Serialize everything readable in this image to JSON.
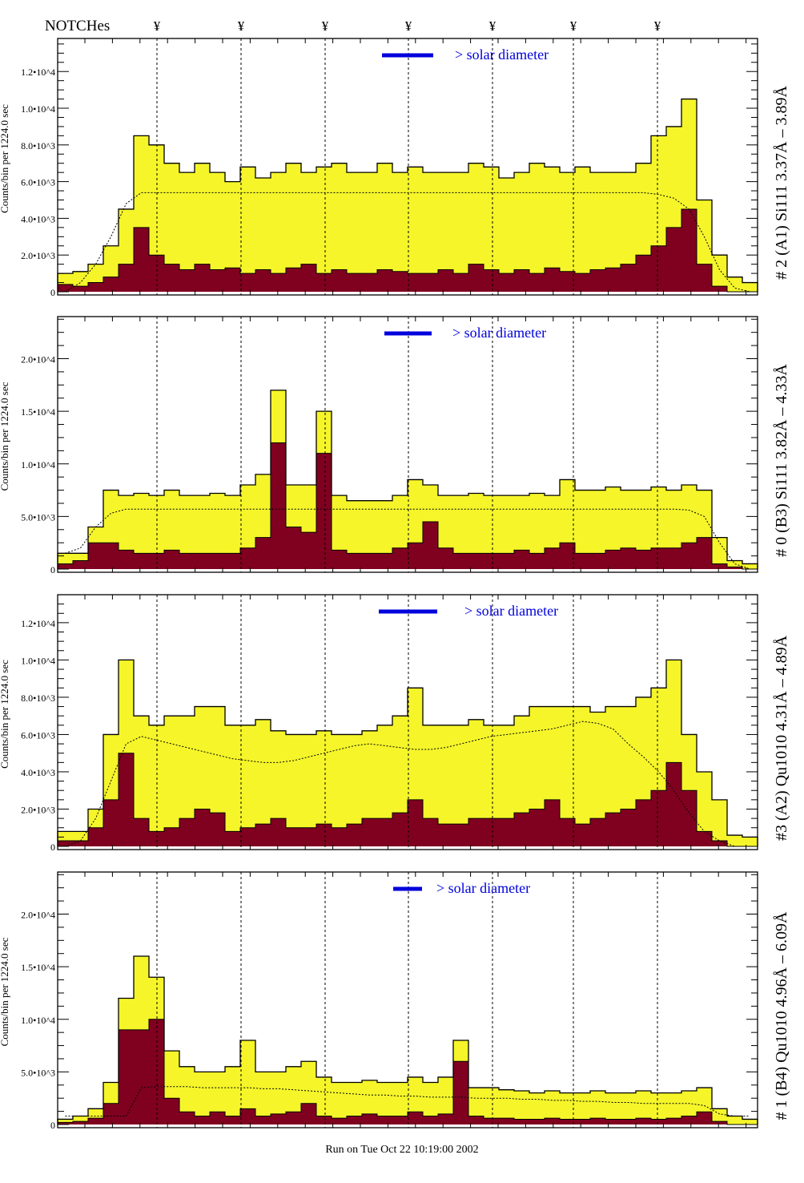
{
  "header": {
    "notches_label": "NOTCHes",
    "notch_symbol": "¥",
    "notch_count": 7
  },
  "footer": {
    "run_text": "Run on Tue Oct 22 10:19:00 2002"
  },
  "colors": {
    "total_fill": "#f5f52a",
    "selected_fill": "#800020",
    "outline": "#000000",
    "legend": "#0000dd"
  },
  "chart_data": [
    {
      "type": "bar",
      "title": "# 2 (A1) Si111  3.37Å – 3.89Å",
      "ylabel": "Counts/bin per   1224.0 sec",
      "legend": "> solar diameter",
      "ylim": [
        0,
        13800
      ],
      "yticks": [
        {
          "v": 0,
          "label": "0"
        },
        {
          "v": 2000,
          "label": "2.0•10^3"
        },
        {
          "v": 4000,
          "label": "4.0•10^3"
        },
        {
          "v": 6000,
          "label": "6.0•10^3"
        },
        {
          "v": 8000,
          "label": "8.0•10^3"
        },
        {
          "v": 10000,
          "label": "1.0•10^4"
        },
        {
          "v": 12000,
          "label": "1.2•10^4"
        }
      ],
      "series": [
        {
          "values": [
            1000,
            1100,
            1500,
            2500,
            4500,
            8500,
            8000,
            7000,
            6500,
            7000,
            6500,
            6000,
            6800,
            6200,
            6500,
            7000,
            6500,
            6800,
            7000,
            6500,
            6500,
            7000,
            6500,
            6800,
            6500,
            6500,
            6500,
            7000,
            6800,
            6200,
            6500,
            7000,
            6800,
            6500,
            6800,
            6500,
            6500,
            6500,
            7000,
            8500,
            9000,
            10500,
            5000,
            2000,
            800,
            500
          ]
        },
        {
          "values": [
            400,
            300,
            500,
            800,
            1500,
            3500,
            2000,
            1500,
            1200,
            1500,
            1200,
            1300,
            1000,
            1200,
            1000,
            1300,
            1500,
            1000,
            1200,
            1000,
            1000,
            1200,
            1100,
            1000,
            1000,
            1200,
            1000,
            1500,
            1200,
            1000,
            1200,
            1000,
            1300,
            1100,
            1000,
            1200,
            1300,
            1500,
            2000,
            2500,
            3500,
            4500,
            1500,
            300,
            0,
            0
          ]
        },
        {
          "values": [
            0,
            500,
            1500,
            3000,
            4800,
            5400,
            5400,
            5400,
            5400,
            5400,
            5400,
            5400,
            5400,
            5400,
            5400,
            5400,
            5400,
            5400,
            5400,
            5400,
            5400,
            5400,
            5400,
            5400,
            5400,
            5400,
            5400,
            5400,
            5400,
            5400,
            5400,
            5400,
            5400,
            5400,
            5400,
            5400,
            5400,
            5400,
            5400,
            5300,
            5100,
            4500,
            3000,
            1200,
            200,
            0
          ]
        }
      ]
    },
    {
      "type": "bar",
      "title": "# 0 (B3) Si111  3.82Å – 4.33Å",
      "ylabel": "Counts/bin per   1224.0 sec",
      "legend": "> solar diameter",
      "ylim": [
        0,
        24000
      ],
      "yticks": [
        {
          "v": 0,
          "label": "0"
        },
        {
          "v": 5000,
          "label": "5.0•10^3"
        },
        {
          "v": 10000,
          "label": "1.0•10^4"
        },
        {
          "v": 15000,
          "label": "1.5•10^4"
        },
        {
          "v": 20000,
          "label": "2.0•10^4"
        }
      ],
      "series": [
        {
          "values": [
            1500,
            1500,
            4000,
            7500,
            7000,
            7200,
            7000,
            7500,
            7000,
            7000,
            7200,
            7000,
            8000,
            9000,
            17000,
            8000,
            8000,
            15000,
            7000,
            6500,
            6500,
            6500,
            7000,
            8500,
            8000,
            7000,
            7000,
            7200,
            7000,
            7000,
            7000,
            7200,
            7000,
            8500,
            7500,
            7500,
            7800,
            7500,
            7500,
            7800,
            7500,
            8000,
            7500,
            3000,
            800,
            500
          ]
        },
        {
          "values": [
            500,
            800,
            2500,
            2500,
            1800,
            1500,
            1500,
            1800,
            1500,
            1500,
            1500,
            1500,
            2000,
            3000,
            12000,
            4000,
            3500,
            11000,
            1800,
            1500,
            1500,
            1500,
            2000,
            2500,
            4500,
            2000,
            1500,
            1500,
            1500,
            1500,
            1800,
            1500,
            2000,
            2500,
            1500,
            1500,
            1800,
            2000,
            1800,
            2000,
            2000,
            2500,
            3000,
            500,
            200,
            0
          ]
        },
        {
          "values": [
            1500,
            2000,
            4000,
            5300,
            5700,
            5700,
            5700,
            5700,
            5700,
            5700,
            5700,
            5700,
            5700,
            5700,
            5700,
            5700,
            5700,
            5700,
            5700,
            5700,
            5700,
            5700,
            5700,
            5700,
            5700,
            5700,
            5700,
            5700,
            5700,
            5700,
            5700,
            5700,
            5700,
            5700,
            5700,
            5700,
            5700,
            5700,
            5700,
            5700,
            5700,
            5600,
            5000,
            2500,
            500,
            0
          ]
        }
      ]
    },
    {
      "type": "bar",
      "title": "#3 (A2) Qu1010  4.31Å – 4.89Å",
      "ylabel": "Counts/bin per   1224.0 sec",
      "legend": "> solar diameter",
      "ylim": [
        0,
        13500
      ],
      "yticks": [
        {
          "v": 0,
          "label": "0"
        },
        {
          "v": 2000,
          "label": "2.0•10^3"
        },
        {
          "v": 4000,
          "label": "4.0•10^3"
        },
        {
          "v": 6000,
          "label": "6.0•10^3"
        },
        {
          "v": 8000,
          "label": "8.0•10^3"
        },
        {
          "v": 10000,
          "label": "1.0•10^4"
        },
        {
          "v": 12000,
          "label": "1.2•10^4"
        }
      ],
      "series": [
        {
          "values": [
            800,
            800,
            2000,
            6000,
            10000,
            7000,
            6500,
            7000,
            7000,
            7500,
            7500,
            6500,
            6500,
            6800,
            6200,
            6000,
            6000,
            6200,
            6000,
            6000,
            6200,
            6500,
            7000,
            8500,
            6500,
            6500,
            6500,
            6800,
            6500,
            6500,
            7000,
            7500,
            7500,
            7500,
            7500,
            7200,
            7500,
            7500,
            8000,
            8500,
            10000,
            6000,
            4000,
            2500,
            600,
            500
          ]
        },
        {
          "values": [
            300,
            300,
            1000,
            2500,
            5000,
            1500,
            800,
            1000,
            1500,
            2000,
            1800,
            800,
            1000,
            1200,
            1500,
            1000,
            1000,
            1200,
            1000,
            1200,
            1500,
            1500,
            1800,
            2500,
            1500,
            1200,
            1200,
            1500,
            1500,
            1500,
            1800,
            2000,
            2500,
            1500,
            1200,
            1500,
            1800,
            2000,
            2500,
            3000,
            4500,
            3000,
            800,
            300,
            0,
            0
          ]
        },
        {
          "values": [
            0,
            300,
            1500,
            3500,
            5500,
            5900,
            5700,
            5500,
            5300,
            5100,
            4900,
            4700,
            4600,
            4500,
            4500,
            4600,
            4800,
            5000,
            5200,
            5400,
            5500,
            5400,
            5300,
            5200,
            5200,
            5300,
            5500,
            5700,
            5900,
            6000,
            6100,
            6200,
            6300,
            6500,
            6700,
            6600,
            6300,
            5500,
            4800,
            4000,
            3000,
            1800,
            800,
            300,
            0,
            0
          ]
        }
      ]
    },
    {
      "type": "bar",
      "title": "# 1 (B4) Qu1010 4.96Å – 6.09Å",
      "ylabel": "Counts/bin per   1224.0 sec",
      "legend": "> solar diameter",
      "ylim": [
        0,
        24000
      ],
      "yticks": [
        {
          "v": 0,
          "label": "0"
        },
        {
          "v": 5000,
          "label": "5.0•10^3"
        },
        {
          "v": 10000,
          "label": "1.0•10^4"
        },
        {
          "v": 15000,
          "label": "1.5•10^4"
        },
        {
          "v": 20000,
          "label": "2.0•10^4"
        }
      ],
      "series": [
        {
          "values": [
            500,
            800,
            1500,
            4000,
            12000,
            16000,
            14000,
            7000,
            5500,
            5000,
            5000,
            5500,
            8000,
            5000,
            5000,
            5500,
            6000,
            4500,
            4000,
            4000,
            4200,
            4000,
            4000,
            4500,
            4000,
            4500,
            8000,
            3500,
            3500,
            3300,
            3200,
            3000,
            3200,
            3000,
            3000,
            3200,
            3000,
            3000,
            3200,
            3000,
            3000,
            3200,
            3500,
            1500,
            800,
            500
          ]
        },
        {
          "values": [
            200,
            300,
            600,
            2000,
            9000,
            9000,
            10000,
            2500,
            1200,
            800,
            1200,
            800,
            1500,
            800,
            1000,
            1200,
            2000,
            800,
            600,
            800,
            1000,
            800,
            800,
            1200,
            800,
            1000,
            6000,
            800,
            600,
            600,
            500,
            500,
            600,
            500,
            500,
            600,
            500,
            500,
            600,
            500,
            600,
            800,
            1200,
            300,
            0,
            0
          ]
        },
        {
          "values": [
            800,
            800,
            800,
            800,
            800,
            3500,
            3600,
            3600,
            3600,
            3500,
            3500,
            3500,
            3500,
            3400,
            3400,
            3300,
            3200,
            3100,
            3000,
            2900,
            2800,
            2800,
            2700,
            2700,
            2600,
            2600,
            2600,
            2500,
            2500,
            2500,
            2400,
            2400,
            2300,
            2300,
            2200,
            2200,
            2100,
            2100,
            2000,
            2000,
            2000,
            2000,
            1800,
            1000,
            800,
            800
          ]
        }
      ]
    }
  ]
}
